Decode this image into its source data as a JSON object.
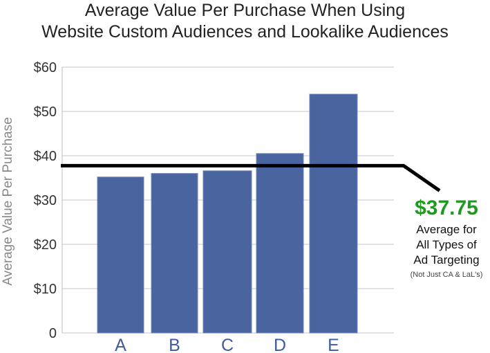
{
  "chart_data": {
    "type": "bar",
    "title": [
      "Average Value Per Purchase When Using",
      "Website Custom Audiences and Lookalike Audiences"
    ],
    "xlabel": "",
    "ylabel": "Average Value Per Purchase",
    "categories": [
      "A",
      "B",
      "C",
      "D",
      "E"
    ],
    "values": [
      35.2,
      36.0,
      36.6,
      40.5,
      53.9
    ],
    "ylim": [
      0,
      60
    ],
    "yticks": [
      0,
      10,
      20,
      30,
      40,
      50,
      60
    ],
    "ytick_labels": [
      "0",
      "$10",
      "$20",
      "$30",
      "$40",
      "$50",
      "$60"
    ],
    "grid": true,
    "bar_color": "#4a64a0",
    "reference_line": {
      "value": 37.75,
      "color": "#000000",
      "label_value": "$37.75",
      "label_value_color": "#1f9a1f",
      "label_lines": [
        "Average for",
        "All Types of",
        "Ad Targeting"
      ],
      "label_note": "(Not Just CA & LaL's)"
    }
  }
}
